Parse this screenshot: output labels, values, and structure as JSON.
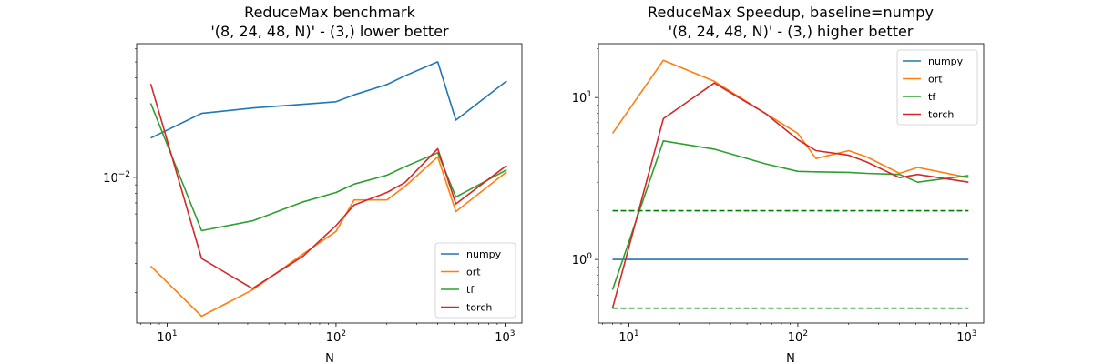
{
  "chart_data": [
    {
      "type": "line",
      "title_line1": "ReduceMax benchmark",
      "title_line2": "'(8, 24, 48, N)' - (3,) lower better",
      "xlabel": "N",
      "ylabel": "",
      "xscale": "log",
      "yscale": "log",
      "xlim": [
        6.6,
        1260
      ],
      "ylim": [
        0.00131,
        0.0645
      ],
      "x_ticks": [
        {
          "value": 10,
          "base": "10",
          "exp": "1"
        },
        {
          "value": 100,
          "base": "10",
          "exp": "2"
        },
        {
          "value": 1000,
          "base": "10",
          "exp": "3"
        }
      ],
      "y_ticks": [
        {
          "value": 0.01,
          "base": "10",
          "exp": "−2"
        }
      ],
      "legend_position": "lower right",
      "series": [
        {
          "name": "numpy",
          "color": "#1f77b4",
          "x": [
            8,
            16,
            32,
            64,
            100,
            128,
            200,
            256,
            400,
            512,
            1024
          ],
          "y": [
            0.0173,
            0.0244,
            0.0263,
            0.0277,
            0.0287,
            0.0316,
            0.0365,
            0.0412,
            0.0501,
            0.0222,
            0.0384
          ]
        },
        {
          "name": "ort",
          "color": "#ff7f0e",
          "x": [
            8,
            16,
            32,
            64,
            100,
            128,
            200,
            256,
            400,
            512,
            1024
          ],
          "y": [
            0.0029,
            0.00144,
            0.00208,
            0.00344,
            0.0047,
            0.0073,
            0.0073,
            0.0088,
            0.0133,
            0.0062,
            0.0108
          ]
        },
        {
          "name": "tf",
          "color": "#2ca02c",
          "x": [
            8,
            16,
            32,
            64,
            100,
            128,
            200,
            256,
            400,
            512,
            1024
          ],
          "y": [
            0.0281,
            0.00475,
            0.00545,
            0.0071,
            0.0081,
            0.0091,
            0.0103,
            0.0116,
            0.0141,
            0.0076,
            0.0111
          ]
        },
        {
          "name": "torch",
          "color": "#d62728",
          "x": [
            8,
            16,
            32,
            64,
            100,
            128,
            200,
            256,
            400,
            512,
            1024
          ],
          "y": [
            0.0368,
            0.00322,
            0.00212,
            0.00334,
            0.0051,
            0.0068,
            0.0081,
            0.0093,
            0.0149,
            0.0069,
            0.0118
          ]
        }
      ]
    },
    {
      "type": "line",
      "title_line1": "ReduceMax Speedup, baseline=numpy",
      "title_line2": "'(8, 24, 48, N)' - (3,) higher better",
      "xlabel": "N",
      "ylabel": "",
      "xscale": "log",
      "yscale": "log",
      "xlim": [
        6.6,
        1260
      ],
      "ylim": [
        0.405,
        21.5
      ],
      "x_ticks": [
        {
          "value": 10,
          "base": "10",
          "exp": "1"
        },
        {
          "value": 100,
          "base": "10",
          "exp": "2"
        },
        {
          "value": 1000,
          "base": "10",
          "exp": "3"
        }
      ],
      "y_ticks": [
        {
          "value": 1,
          "base": "10",
          "exp": "0"
        },
        {
          "value": 10,
          "base": "10",
          "exp": "1"
        }
      ],
      "legend_position": "upper right",
      "reference_lines": [
        {
          "y": 2.0,
          "color": "#008000",
          "style": "dashed"
        },
        {
          "y": 0.5,
          "color": "#008000",
          "style": "dashed"
        }
      ],
      "series": [
        {
          "name": "numpy",
          "color": "#1f77b4",
          "x": [
            8,
            16,
            32,
            64,
            100,
            128,
            200,
            256,
            400,
            512,
            1024
          ],
          "y": [
            1,
            1,
            1,
            1,
            1,
            1,
            1,
            1,
            1,
            1,
            1
          ]
        },
        {
          "name": "ort",
          "color": "#ff7f0e",
          "x": [
            8,
            16,
            32,
            64,
            100,
            128,
            200,
            256,
            400,
            512,
            1024
          ],
          "y": [
            6.0,
            17.0,
            12.6,
            8.0,
            6.0,
            4.2,
            4.7,
            4.3,
            3.4,
            3.7,
            3.2
          ]
        },
        {
          "name": "tf",
          "color": "#2ca02c",
          "x": [
            8,
            16,
            32,
            64,
            100,
            128,
            200,
            256,
            400,
            512,
            1024
          ],
          "y": [
            0.65,
            5.4,
            4.8,
            3.9,
            3.5,
            3.48,
            3.45,
            3.4,
            3.35,
            3.0,
            3.3
          ]
        },
        {
          "name": "torch",
          "color": "#d62728",
          "x": [
            8,
            16,
            32,
            64,
            100,
            128,
            200,
            256,
            400,
            512,
            1024
          ],
          "y": [
            0.5,
            7.4,
            12.3,
            8.0,
            5.5,
            4.7,
            4.4,
            4.0,
            3.2,
            3.35,
            3.0
          ]
        }
      ]
    }
  ]
}
